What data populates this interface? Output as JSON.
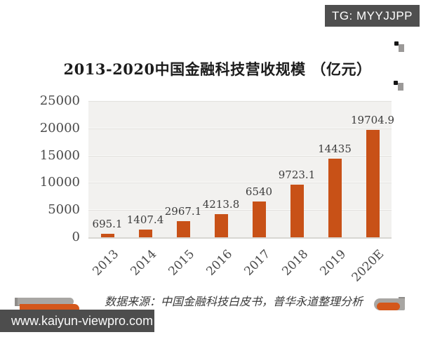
{
  "badge": {
    "label": "TG: MYYJJPP"
  },
  "title": "2013-2020中国金融科技营收规模 （亿元）",
  "chart_data": {
    "type": "bar",
    "categories": [
      "2013",
      "2014",
      "2015",
      "2016",
      "2017",
      "2018",
      "2019",
      "2020E"
    ],
    "values": [
      695.1,
      1407.4,
      2967.1,
      4213.8,
      6540,
      9723.1,
      14435,
      19704.9
    ],
    "bar_labels": [
      "695.1",
      "1407.4",
      "2967.1",
      "4213.8",
      "6540",
      "9723.1",
      "14435",
      "19704.9"
    ],
    "title": "2013-2020中国金融科技营收规模 （亿元）",
    "xlabel": "",
    "ylabel": "",
    "ylim": [
      0,
      25000
    ],
    "yticks": [
      0,
      5000,
      10000,
      15000,
      20000,
      25000
    ],
    "grid": true,
    "legend": false,
    "bar_color": "#c85117"
  },
  "source_note": "数据来源：中国金融科技白皮书，普华永道整理分析",
  "footer": {
    "url": "www.kaiyun-viewpro.com"
  },
  "colors": {
    "bar": "#c85117",
    "badge_bg": "#4f4f4f",
    "badge_text": "#ffffff",
    "url_bar_bg": "#4d4d4d",
    "url_bar_text": "#fafafa",
    "plot_bg": "#f2f1ef",
    "gridline": "#e3e1de",
    "axis_text": "#4a4a4a",
    "title_text": "#1c1c1c",
    "decor_orange": "#d4571b",
    "decor_gray": "#a8a6a3"
  }
}
